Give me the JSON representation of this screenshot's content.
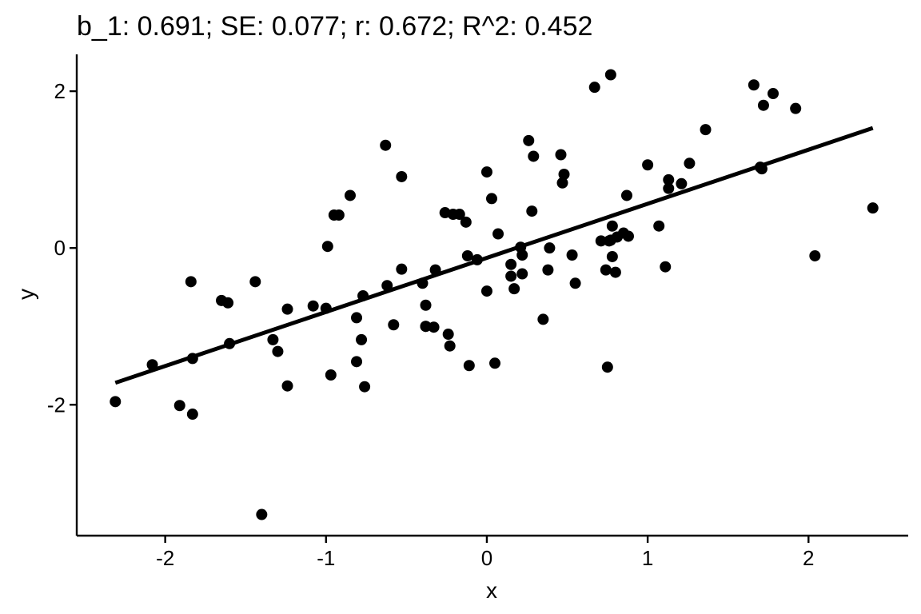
{
  "chart_data": {
    "type": "scatter",
    "title": "b_1:  0.691;  SE:  0.077;  r:  0.672;  R^2:  0.452",
    "xlabel": "x",
    "ylabel": "y",
    "xlim": [
      -2.55,
      2.62
    ],
    "ylim": [
      -3.67,
      2.47
    ],
    "xticks": [
      -2,
      -1,
      0,
      1,
      2
    ],
    "yticks": [
      -2,
      0,
      2
    ],
    "xtick_labels": [
      "-2",
      "-1",
      "0",
      "1",
      "2"
    ],
    "ytick_labels": [
      "-2",
      "0",
      "2"
    ],
    "grid": false,
    "fit_line": {
      "x": [
        -2.31,
        2.4
      ],
      "y": [
        -1.72,
        1.53
      ]
    },
    "points": {
      "x": [
        -2.31,
        -2.08,
        -1.91,
        -1.83,
        -1.83,
        -1.84,
        -1.65,
        -1.61,
        -1.6,
        -1.44,
        -1.4,
        -1.33,
        -1.3,
        -1.24,
        -1.24,
        -1.08,
        -0.99,
        -1.0,
        -0.97,
        -0.95,
        -0.92,
        -0.85,
        -0.81,
        -0.81,
        -0.78,
        -0.76,
        -0.77,
        -0.63,
        -0.62,
        -0.58,
        -0.53,
        -0.53,
        -0.4,
        -0.38,
        -0.38,
        -0.38,
        -0.33,
        -0.32,
        -0.26,
        -0.24,
        -0.23,
        -0.21,
        -0.17,
        -0.13,
        -0.12,
        -0.11,
        -0.06,
        -0.0,
        0.0,
        0.03,
        0.05,
        0.07,
        0.15,
        0.15,
        0.17,
        0.21,
        0.22,
        0.22,
        0.26,
        0.28,
        0.29,
        0.35,
        0.38,
        0.39,
        0.46,
        0.47,
        0.48,
        0.53,
        0.55,
        0.67,
        0.71,
        0.74,
        0.75,
        0.76,
        0.77,
        0.77,
        0.78,
        0.78,
        0.8,
        0.81,
        0.85,
        0.87,
        0.88,
        1.0,
        1.07,
        1.11,
        1.13,
        1.13,
        1.21,
        1.26,
        1.36,
        1.66,
        1.7,
        1.71,
        1.72,
        1.78,
        1.92,
        2.04,
        2.4
      ],
      "y": [
        -1.96,
        -1.49,
        -2.01,
        -2.12,
        -1.41,
        -0.43,
        -0.67,
        -0.7,
        -1.22,
        -0.43,
        -3.4,
        -1.17,
        -1.32,
        -0.78,
        -1.76,
        -0.74,
        0.02,
        -0.77,
        -1.62,
        0.42,
        0.42,
        0.67,
        -0.89,
        -1.45,
        -1.17,
        -1.77,
        -0.61,
        1.31,
        -0.48,
        -0.98,
        0.91,
        -0.27,
        -0.45,
        -0.73,
        -1.0,
        -1.0,
        -1.01,
        -0.28,
        0.45,
        -1.1,
        -1.25,
        0.43,
        0.43,
        0.33,
        -0.1,
        -1.5,
        -0.15,
        0.97,
        -0.55,
        0.63,
        -1.47,
        0.18,
        -0.21,
        -0.36,
        -0.52,
        0.01,
        -0.09,
        -0.33,
        1.37,
        0.47,
        1.17,
        -0.91,
        -0.28,
        0.0,
        1.19,
        0.83,
        0.94,
        -0.09,
        -0.45,
        2.05,
        0.09,
        -0.28,
        -1.52,
        0.09,
        0.1,
        2.21,
        -0.11,
        0.28,
        -0.31,
        0.14,
        0.19,
        0.67,
        0.15,
        1.06,
        0.28,
        -0.24,
        0.87,
        0.76,
        0.82,
        1.08,
        1.51,
        2.08,
        1.03,
        1.01,
        1.82,
        1.97,
        1.78,
        -0.1,
        0.51
      ]
    }
  }
}
